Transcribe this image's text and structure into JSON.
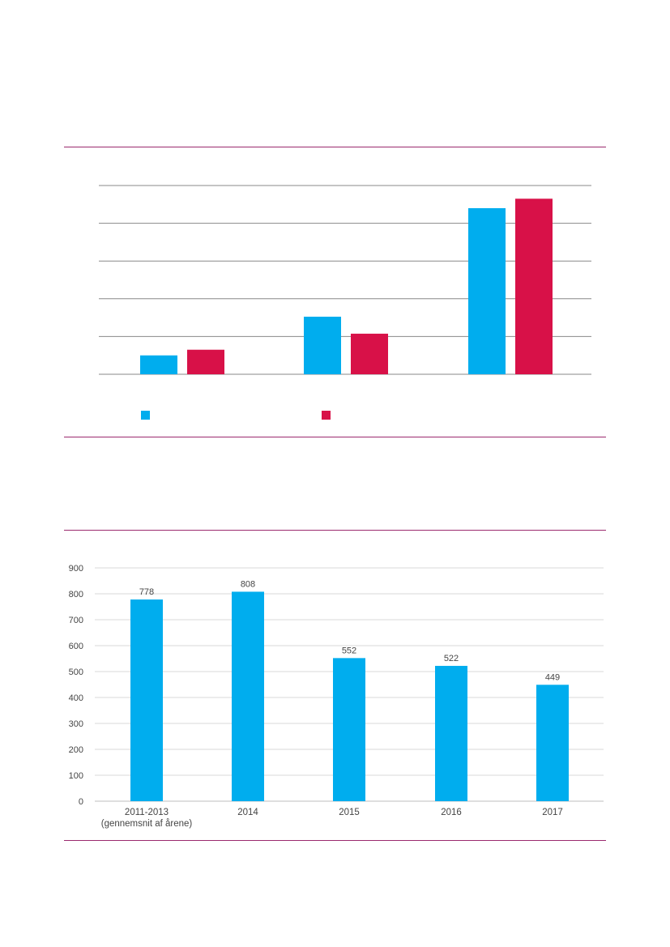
{
  "colors": {
    "accent_rule": "#9b2a6e",
    "series_blue": "#00adee",
    "series_red": "#d81148",
    "grid": "#888888",
    "grid_light": "#d9d9d9",
    "text": "#444444"
  },
  "chart_data": [
    {
      "type": "bar",
      "title": "",
      "xlabel": "",
      "ylabel": "",
      "ylim": [
        0,
        100
      ],
      "grid": true,
      "legend_position": "bottom",
      "categories": [
        "",
        "",
        ""
      ],
      "series": [
        {
          "name": "",
          "color": "#00adee",
          "values": [
            10,
            30.5,
            88
          ]
        },
        {
          "name": "",
          "color": "#d81148",
          "values": [
            13,
            21.5,
            93
          ]
        }
      ]
    },
    {
      "type": "bar",
      "title": "",
      "xlabel": "",
      "ylabel": "",
      "ylim": [
        0,
        900
      ],
      "yticks": [
        "0",
        "100",
        "200",
        "300",
        "400",
        "500",
        "600",
        "700",
        "800",
        "900"
      ],
      "grid": true,
      "categories": [
        [
          "2011-2013",
          "(gennemsnit af årene)"
        ],
        [
          "2014"
        ],
        [
          "2015"
        ],
        [
          "2016"
        ],
        [
          "2017"
        ]
      ],
      "values": [
        778,
        808,
        552,
        522,
        449
      ],
      "labels": [
        "778",
        "808",
        "552",
        "522",
        "449"
      ],
      "color": "#00adee"
    }
  ]
}
